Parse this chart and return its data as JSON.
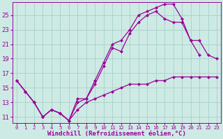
{
  "bg_color": "#ceeae4",
  "grid_color": "#aad4cc",
  "line_color": "#990099",
  "markersize": 2.5,
  "linewidth": 0.9,
  "xlabel": "Windchill (Refroidissement éolien,°C)",
  "xlabel_fontsize": 6.5,
  "ytick_fontsize": 6.5,
  "xtick_fontsize": 5.2,
  "xlim": [
    -0.5,
    23.5
  ],
  "ylim": [
    10.2,
    26.8
  ],
  "yticks": [
    11,
    13,
    15,
    17,
    19,
    21,
    23,
    25
  ],
  "xticks": [
    0,
    1,
    2,
    3,
    4,
    5,
    6,
    7,
    8,
    9,
    10,
    11,
    12,
    13,
    14,
    15,
    16,
    17,
    18,
    19,
    20,
    21,
    22,
    23
  ],
  "line1_x": [
    0,
    1,
    2,
    3,
    4,
    5,
    6,
    7,
    8,
    9,
    10,
    11,
    12,
    13,
    14,
    15,
    16,
    17,
    18,
    19,
    20,
    21
  ],
  "line1_y": [
    16.0,
    14.5,
    13.0,
    11.0,
    12.0,
    11.5,
    10.5,
    13.5,
    13.5,
    16.0,
    18.5,
    21.0,
    21.5,
    23.0,
    25.0,
    25.5,
    26.0,
    26.5,
    26.5,
    24.5,
    21.5,
    19.5
  ],
  "line2_x": [
    0,
    1,
    2,
    3,
    4,
    5,
    6,
    7,
    8,
    9,
    10,
    11,
    12,
    13,
    14,
    15,
    16,
    17,
    18,
    19,
    20,
    21,
    22,
    23
  ],
  "line2_y": [
    16.0,
    14.5,
    13.0,
    11.0,
    12.0,
    11.5,
    10.5,
    13.0,
    13.5,
    15.5,
    18.0,
    20.5,
    20.0,
    22.5,
    24.0,
    25.0,
    25.5,
    24.5,
    24.0,
    24.0,
    21.5,
    21.5,
    19.5,
    19.0
  ],
  "line3_x": [
    0,
    1,
    2,
    3,
    4,
    5,
    6,
    7,
    8,
    9,
    10,
    11,
    12,
    13,
    14,
    15,
    16,
    17,
    18,
    19,
    20,
    21,
    22,
    23
  ],
  "line3_y": [
    16.0,
    14.5,
    13.0,
    11.0,
    12.0,
    11.5,
    10.5,
    12.0,
    13.0,
    13.5,
    14.0,
    14.5,
    15.0,
    15.5,
    15.5,
    15.5,
    16.0,
    16.0,
    16.5,
    16.5,
    16.5,
    16.5,
    16.5,
    16.5
  ]
}
